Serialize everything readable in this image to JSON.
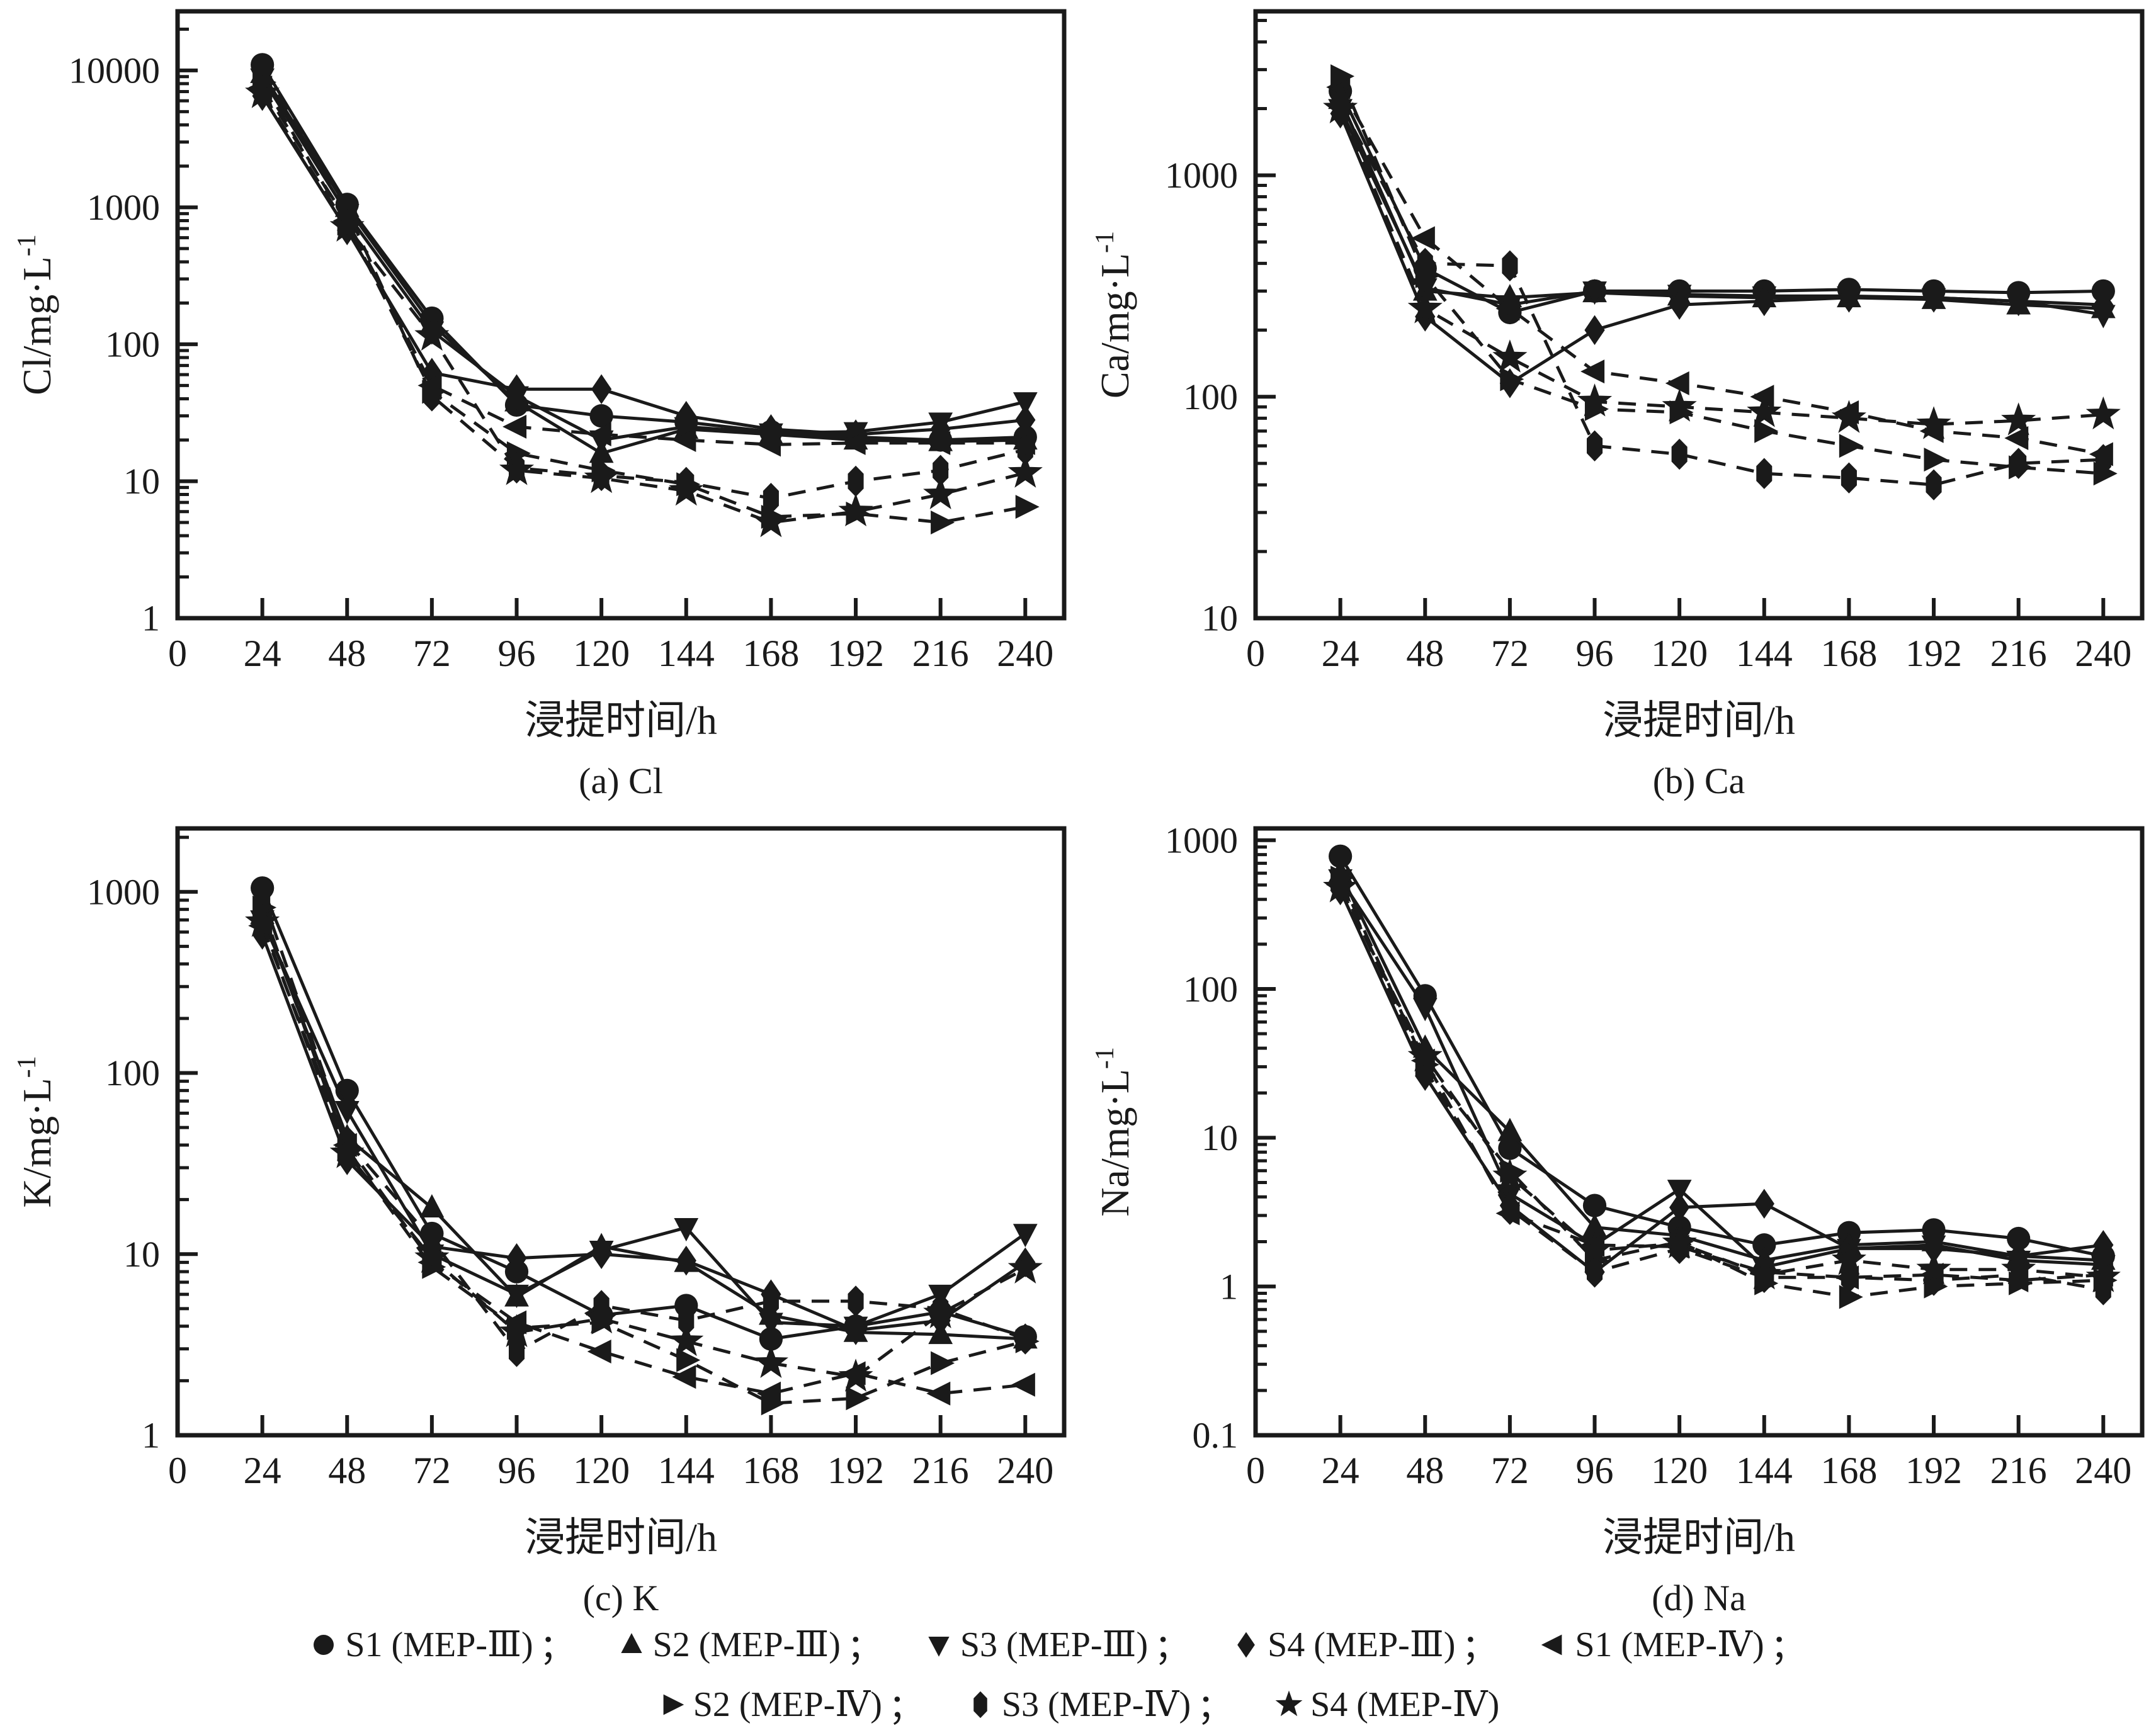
{
  "page": {
    "background": "#ffffff",
    "ink": "#1a1a1a"
  },
  "legend": {
    "rows": [
      [
        {
          "marker": "circle",
          "label": "S1 (MEP-Ⅲ)",
          "sep": "；"
        },
        {
          "marker": "triangle-up",
          "label": "S2 (MEP-Ⅲ)",
          "sep": "；"
        },
        {
          "marker": "triangle-down",
          "label": "S3 (MEP-Ⅲ)",
          "sep": "；"
        },
        {
          "marker": "diamond",
          "label": "S4 (MEP-Ⅲ)",
          "sep": "；"
        },
        {
          "marker": "triangle-left",
          "label": "S1 (MEP-Ⅳ)",
          "sep": "；"
        }
      ],
      [
        {
          "marker": "triangle-right",
          "label": "S2 (MEP-Ⅳ)",
          "sep": "；"
        },
        {
          "marker": "hexagon",
          "label": "S3 (MEP-Ⅳ)",
          "sep": "；"
        },
        {
          "marker": "star",
          "label": "S4 (MEP-Ⅳ)",
          "sep": ""
        }
      ]
    ]
  },
  "chart_data": [
    {
      "id": "a",
      "type": "line",
      "caption": "(a) Cl",
      "xlabel": "浸提时间/h",
      "ylabel_base": "Cl/mg·L",
      "ylabel_sup": "-1",
      "x": [
        24,
        48,
        72,
        96,
        120,
        144,
        168,
        192,
        216,
        240
      ],
      "xticks": [
        0,
        24,
        48,
        72,
        96,
        120,
        144,
        168,
        192,
        216,
        240
      ],
      "xlim": [
        0,
        251
      ],
      "yscale": "log",
      "ylim": [
        1,
        27000
      ],
      "yticks": [
        1,
        10,
        100,
        1000,
        10000
      ],
      "grid": false,
      "legend_position": "figure-bottom",
      "series": [
        {
          "name": "S1 (MEP-Ⅲ)",
          "marker": "circle",
          "line": "solid",
          "values": [
            11000,
            1050,
            155,
            36,
            30,
            27,
            23,
            21,
            20,
            21
          ]
        },
        {
          "name": "S2 (MEP-Ⅲ)",
          "marker": "triangle-up",
          "line": "solid",
          "values": [
            9500,
            1000,
            140,
            38,
            16,
            24,
            22,
            20,
            19.5,
            20
          ]
        },
        {
          "name": "S3 (MEP-Ⅲ)",
          "marker": "triangle-down",
          "line": "solid",
          "values": [
            8800,
            900,
            125,
            42,
            20,
            25,
            22.5,
            23,
            27,
            38
          ]
        },
        {
          "name": "S4 (MEP-Ⅲ)",
          "marker": "diamond",
          "line": "solid",
          "values": [
            6500,
            680,
            62,
            47,
            47,
            30,
            24,
            22,
            24,
            28
          ]
        },
        {
          "name": "S1 (MEP-Ⅳ)",
          "marker": "triangle-left",
          "line": "dashed",
          "values": [
            7500,
            800,
            50,
            25,
            22,
            20,
            18.5,
            19,
            19,
            19
          ]
        },
        {
          "name": "S2 (MEP-Ⅳ)",
          "marker": "triangle-right",
          "line": "dashed",
          "values": [
            8200,
            760,
            45,
            16,
            12,
            9.5,
            5.5,
            5.8,
            5,
            6.5
          ]
        },
        {
          "name": "S3 (MEP-Ⅳ)",
          "marker": "hexagon",
          "line": "dashed",
          "values": [
            10000,
            950,
            42,
            12.5,
            11,
            9.8,
            7.5,
            10,
            12,
            17
          ]
        },
        {
          "name": "S4 (MEP-Ⅳ)",
          "marker": "star",
          "line": "dashed",
          "values": [
            6800,
            720,
            115,
            12,
            10.5,
            8.5,
            5,
            6,
            8,
            11.5
          ]
        }
      ]
    },
    {
      "id": "b",
      "type": "line",
      "caption": "(b) Ca",
      "xlabel": "浸提时间/h",
      "ylabel_base": "Ca/mg·L",
      "ylabel_sup": "-1",
      "x": [
        24,
        48,
        72,
        96,
        120,
        144,
        168,
        192,
        216,
        240
      ],
      "xticks": [
        0,
        24,
        48,
        72,
        96,
        120,
        144,
        168,
        192,
        216,
        240
      ],
      "xlim": [
        0,
        251
      ],
      "yscale": "log",
      "ylim": [
        10,
        5500
      ],
      "yticks": [
        10,
        100,
        1000
      ],
      "grid": false,
      "legend_position": "figure-bottom",
      "series": [
        {
          "name": "S1 (MEP-Ⅲ)",
          "marker": "circle",
          "line": "solid",
          "values": [
            2400,
            380,
            240,
            300,
            300,
            300,
            305,
            300,
            295,
            300
          ]
        },
        {
          "name": "S2 (MEP-Ⅲ)",
          "marker": "triangle-up",
          "line": "solid",
          "values": [
            2200,
            300,
            280,
            295,
            285,
            280,
            280,
            275,
            260,
            250
          ]
        },
        {
          "name": "S3 (MEP-Ⅲ)",
          "marker": "triangle-down",
          "line": "solid",
          "values": [
            2000,
            310,
            260,
            300,
            290,
            285,
            285,
            280,
            270,
            235
          ]
        },
        {
          "name": "S4 (MEP-Ⅲ)",
          "marker": "diamond",
          "line": "solid",
          "values": [
            1900,
            230,
            115,
            200,
            260,
            270,
            280,
            280,
            270,
            260
          ]
        },
        {
          "name": "S1 (MEP-Ⅳ)",
          "marker": "triangle-left",
          "line": "dashed",
          "values": [
            2500,
            520,
            250,
            130,
            115,
            100,
            85,
            70,
            65,
            55
          ]
        },
        {
          "name": "S2 (MEP-Ⅳ)",
          "marker": "triangle-right",
          "line": "dashed",
          "values": [
            2800,
            350,
            120,
            88,
            85,
            70,
            60,
            52,
            48,
            45
          ]
        },
        {
          "name": "S3 (MEP-Ⅳ)",
          "marker": "hexagon",
          "line": "dashed",
          "values": [
            2100,
            400,
            390,
            60,
            55,
            45,
            43,
            40,
            50,
            52
          ]
        },
        {
          "name": "S4 (MEP-Ⅳ)",
          "marker": "star",
          "line": "dashed",
          "values": [
            2000,
            250,
            150,
            95,
            90,
            85,
            80,
            75,
            78,
            83
          ]
        }
      ]
    },
    {
      "id": "c",
      "type": "line",
      "caption": "(c) K",
      "xlabel": "浸提时间/h",
      "ylabel_base": "K/mg·L",
      "ylabel_sup": "-1",
      "x": [
        24,
        48,
        72,
        96,
        120,
        144,
        168,
        192,
        216,
        240
      ],
      "xticks": [
        0,
        24,
        48,
        72,
        96,
        120,
        144,
        168,
        192,
        216,
        240
      ],
      "xlim": [
        0,
        251
      ],
      "yscale": "log",
      "ylim": [
        1,
        2240
      ],
      "yticks": [
        1,
        10,
        100,
        1000
      ],
      "grid": false,
      "legend_position": "figure-bottom",
      "series": [
        {
          "name": "S1 (MEP-Ⅲ)",
          "marker": "circle",
          "line": "solid",
          "values": [
            1050,
            80,
            13,
            8,
            4.6,
            5.2,
            3.4,
            4,
            4.8,
            3.5
          ]
        },
        {
          "name": "S2 (MEP-Ⅲ)",
          "marker": "triangle-up",
          "line": "solid",
          "values": [
            750,
            44,
            18,
            5.8,
            11,
            9,
            4.6,
            3.7,
            3.6,
            3.4
          ]
        },
        {
          "name": "S3 (MEP-Ⅲ)",
          "marker": "triangle-down",
          "line": "solid",
          "values": [
            700,
            62,
            10,
            6,
            10.5,
            14,
            4.2,
            4,
            6,
            13
          ]
        },
        {
          "name": "S4 (MEP-Ⅲ)",
          "marker": "diamond",
          "line": "solid",
          "values": [
            580,
            33,
            11,
            9.5,
            10,
            9.2,
            6,
            3.8,
            4.3,
            9
          ]
        },
        {
          "name": "S1 (MEP-Ⅳ)",
          "marker": "triangle-left",
          "line": "dashed",
          "values": [
            650,
            40,
            9,
            4.2,
            2.9,
            2.1,
            1.7,
            2.2,
            1.7,
            1.9
          ]
        },
        {
          "name": "S2 (MEP-Ⅳ)",
          "marker": "triangle-right",
          "line": "dashed",
          "values": [
            820,
            38,
            8.5,
            3.9,
            4.2,
            2.6,
            1.5,
            1.6,
            2.5,
            3.3
          ]
        },
        {
          "name": "S3 (MEP-Ⅳ)",
          "marker": "hexagon",
          "line": "dashed",
          "values": [
            950,
            42,
            12,
            2.9,
            5.2,
            4.3,
            5.5,
            5.5,
            5,
            3.4
          ]
        },
        {
          "name": "S4 (MEP-Ⅳ)",
          "marker": "star",
          "line": "dashed",
          "values": [
            680,
            36,
            9.5,
            3.7,
            4.4,
            3.3,
            2.5,
            2.1,
            4.7,
            8.3
          ]
        }
      ]
    },
    {
      "id": "d",
      "type": "line",
      "caption": "(d) Na",
      "xlabel": "浸提时间/h",
      "ylabel_base": "Na/mg·L",
      "ylabel_sup": "-1",
      "x": [
        24,
        48,
        72,
        96,
        120,
        144,
        168,
        192,
        216,
        240
      ],
      "xticks": [
        0,
        24,
        48,
        72,
        96,
        120,
        144,
        168,
        192,
        216,
        240
      ],
      "xlim": [
        0,
        251
      ],
      "yscale": "log",
      "ylim": [
        0.1,
        1200
      ],
      "yticks": [
        0.1,
        1,
        10,
        100,
        1000
      ],
      "grid": false,
      "legend_position": "figure-bottom",
      "series": [
        {
          "name": "S1 (MEP-Ⅲ)",
          "marker": "circle",
          "line": "solid",
          "values": [
            780,
            90,
            8.5,
            3.5,
            2.5,
            1.9,
            2.3,
            2.4,
            2.1,
            1.6
          ]
        },
        {
          "name": "S2 (MEP-Ⅲ)",
          "marker": "triangle-up",
          "line": "solid",
          "values": [
            600,
            40,
            11,
            2.5,
            2.2,
            1.5,
            1.9,
            2.0,
            1.6,
            1.5
          ]
        },
        {
          "name": "S3 (MEP-Ⅲ)",
          "marker": "triangle-down",
          "line": "solid",
          "values": [
            550,
            75,
            4.2,
            1.9,
            4.5,
            1.35,
            1.8,
            1.9,
            1.5,
            1.4
          ]
        },
        {
          "name": "S4 (MEP-Ⅲ)",
          "marker": "diamond",
          "line": "solid",
          "values": [
            460,
            26,
            3.5,
            1.25,
            3.4,
            3.6,
            1.8,
            1.8,
            1.6,
            1.9
          ]
        },
        {
          "name": "S1 (MEP-Ⅳ)",
          "marker": "triangle-left",
          "line": "dashed",
          "values": [
            500,
            33,
            3.1,
            1.9,
            1.85,
            1.25,
            1.15,
            1.2,
            1.1,
            1.2
          ]
        },
        {
          "name": "S2 (MEP-Ⅳ)",
          "marker": "triangle-right",
          "line": "dashed",
          "values": [
            560,
            31,
            6,
            1.5,
            2.0,
            1.05,
            0.85,
            1.0,
            1.05,
            1.1
          ]
        },
        {
          "name": "S3 (MEP-Ⅳ)",
          "marker": "hexagon",
          "line": "dashed",
          "values": [
            520,
            29,
            3.3,
            1.25,
            1.8,
            1.15,
            1.15,
            1.1,
            1.2,
            0.95
          ]
        },
        {
          "name": "S4 (MEP-Ⅳ)",
          "marker": "star",
          "line": "dashed",
          "values": [
            480,
            35,
            5.5,
            1.75,
            1.95,
            1.2,
            1.5,
            1.3,
            1.3,
            1.15
          ]
        }
      ]
    }
  ]
}
